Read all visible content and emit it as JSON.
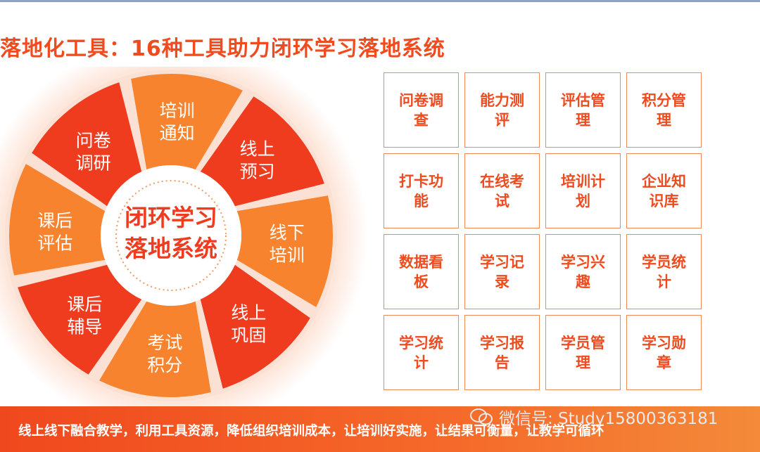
{
  "title": "落地化工具：16种工具助力闭环学习落地系统",
  "center": {
    "line1": "闭环学习",
    "line2": "落地系统"
  },
  "segments": [
    {
      "l1": "培训",
      "l2": "通知"
    },
    {
      "l1": "线上",
      "l2": "预习"
    },
    {
      "l1": "线下",
      "l2": "培训"
    },
    {
      "l1": "线上",
      "l2": "巩固"
    },
    {
      "l1": "考试",
      "l2": "积分"
    },
    {
      "l1": "课后",
      "l2": "辅导"
    },
    {
      "l1": "课后",
      "l2": "评估"
    },
    {
      "l1": "问卷",
      "l2": "调研"
    }
  ],
  "tools": [
    "问卷调查",
    "能力测评",
    "评估管理",
    "积分管理",
    "打卡功能",
    "在线考试",
    "培训计划",
    "企业知识库",
    "数据看板",
    "学习记录",
    "学习兴趣",
    "学员统计",
    "学习统计",
    "学习报告",
    "学员管理",
    "学习勋章"
  ],
  "footer": "线上线下融合教学，利用工具资源，降低组织培训成本，让培训好实施，让结果可衡量，让教学可循环",
  "watermark": "微信号: Study15800363181",
  "colors": {
    "accent_red": "#ef3b1e",
    "accent_orange": "#f7832e",
    "gap_pink": "#fbe1d4"
  },
  "icons": {
    "watermark": "wechat-icon"
  }
}
